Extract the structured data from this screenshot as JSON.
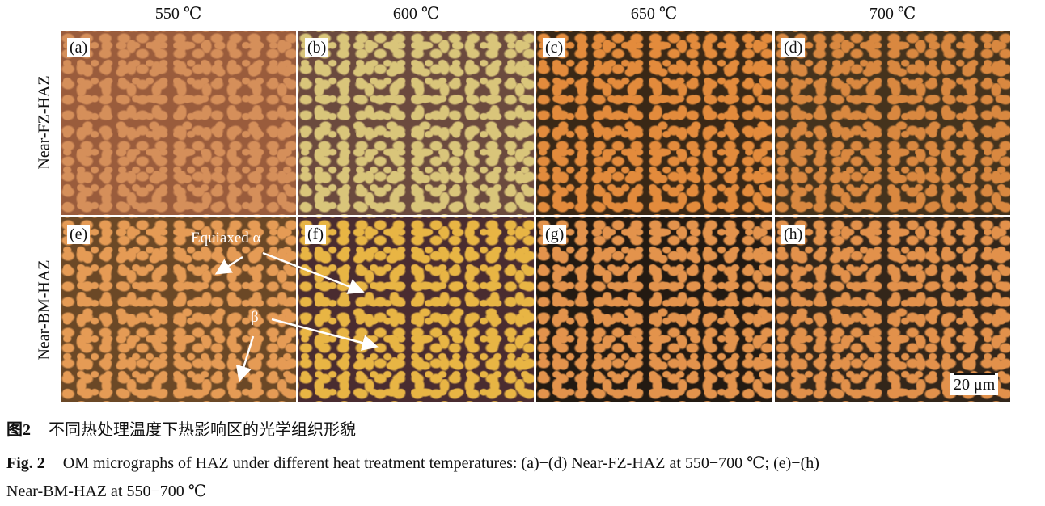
{
  "columns": [
    "550 ℃",
    "600 ℃",
    "650 ℃",
    "700 ℃"
  ],
  "rows": [
    "Near-FZ-HAZ",
    "Near-BM-HAZ"
  ],
  "panels": [
    {
      "label": "(a)",
      "matrix": "#9a5c3c",
      "grain": "#d58f5a"
    },
    {
      "label": "(b)",
      "matrix": "#6b4a3e",
      "grain": "#d9c57a"
    },
    {
      "label": "(c)",
      "matrix": "#3a2816",
      "grain": "#e38b3c"
    },
    {
      "label": "(d)",
      "matrix": "#45331d",
      "grain": "#d98840"
    },
    {
      "label": "(e)",
      "matrix": "#6b4826",
      "grain": "#e59b55"
    },
    {
      "label": "(f)",
      "matrix": "#4a2c30",
      "grain": "#e8b544"
    },
    {
      "label": "(g)",
      "matrix": "#231a12",
      "grain": "#e3934c"
    },
    {
      "label": "(h)",
      "matrix": "#33261a",
      "grain": "#e2914b"
    }
  ],
  "annotations": {
    "alpha": "Equiaxed α",
    "beta": "β",
    "scale": "20 μm"
  },
  "caption": {
    "cn_label": "图2",
    "cn_text": "不同热处理温度下热影响区的光学组织形貌",
    "en_label": "Fig. 2",
    "en_line1": "OM micrographs of HAZ under different heat treatment temperatures: (a)−(d) Near-FZ-HAZ at 550−700 ℃; (e)−(h)",
    "en_line2": "Near-BM-HAZ at 550−700 ℃"
  }
}
